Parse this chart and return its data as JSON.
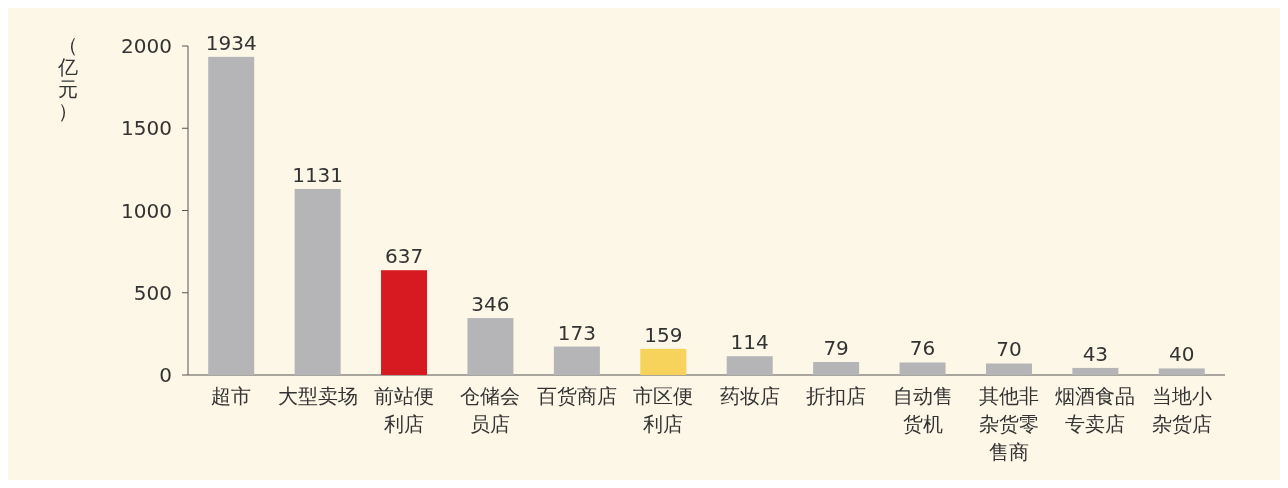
{
  "chart_data": {
    "type": "bar",
    "ylabel": "（亿元）",
    "categories": [
      "超市",
      "大型卖场",
      "前站便利店",
      "仓储会员店",
      "百货商店",
      "市区便利店",
      "药妆店",
      "折扣店",
      "自动售货机",
      "其他非杂货零售商",
      "烟酒食品专卖店",
      "当地小杂货店"
    ],
    "values": [
      1934,
      1131,
      637,
      346,
      173,
      159,
      114,
      79,
      76,
      70,
      43,
      40
    ],
    "colors": [
      "#b5b5b8",
      "#b5b5b8",
      "#d71a21",
      "#b5b5b8",
      "#b5b5b8",
      "#f8d35c",
      "#b5b5b8",
      "#b5b5b8",
      "#b5b5b8",
      "#b5b5b8",
      "#b5b5b8",
      "#b5b5b8"
    ],
    "ylim": [
      0,
      2000
    ],
    "yticks": [
      0,
      500,
      1000,
      1500,
      2000
    ],
    "data_labels": true,
    "grid": false
  }
}
